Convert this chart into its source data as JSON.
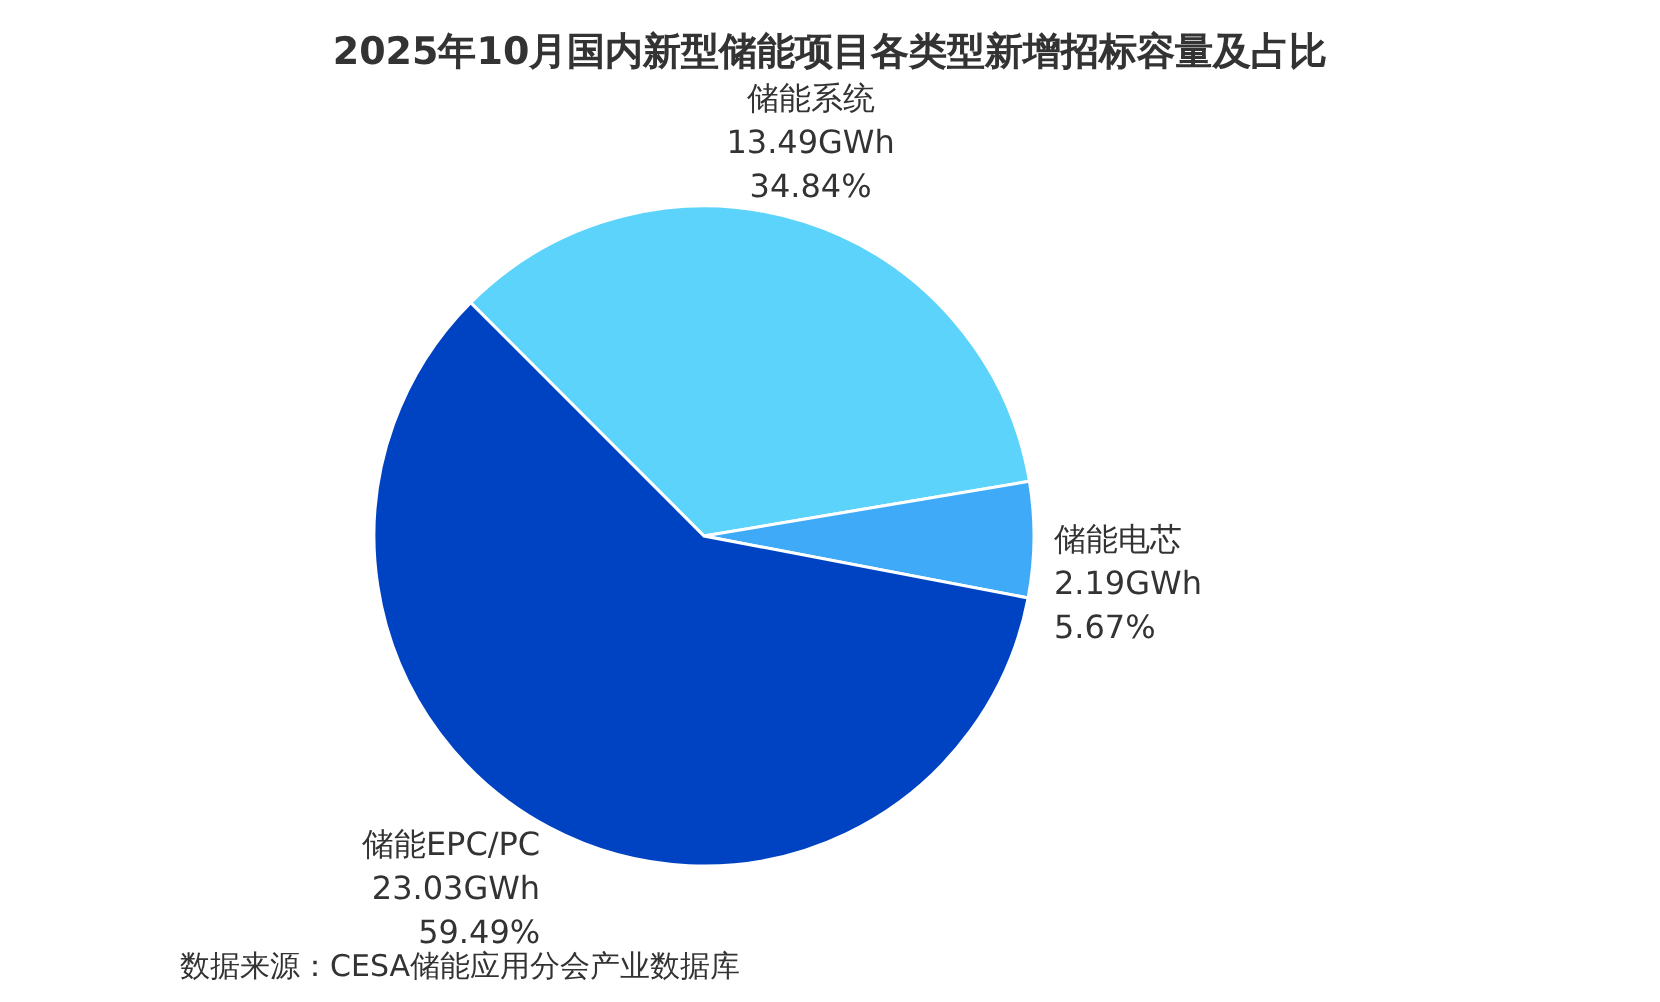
{
  "chart_data": {
    "type": "pie",
    "title": "2025年10月国内新型储能项目各类型新增招标容量及占比",
    "categories": [
      "储能系统",
      "储能电芯",
      "储能EPC/PC"
    ],
    "values": [
      13.49,
      2.19,
      23.03
    ],
    "colors": [
      "#5cd3fb",
      "#3fabf8",
      "#0043c2"
    ],
    "value_labels": [
      "13.49GWh\n34.84%",
      "2.19GWh\n5.67%",
      "23.03GWh\n59.49%"
    ],
    "legend": false,
    "annotations": [
      "数据来源：CESA储能应用分会产业数据库"
    ]
  }
}
